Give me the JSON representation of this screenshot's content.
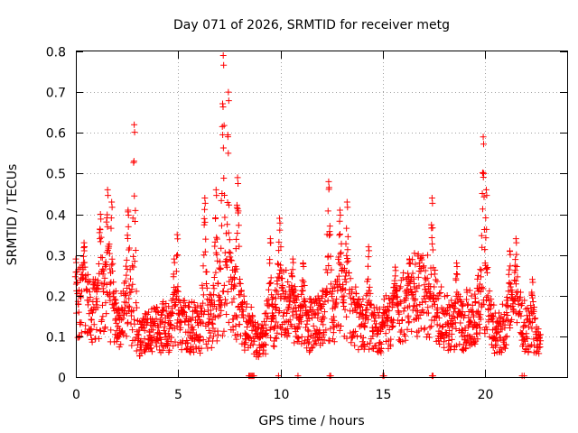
{
  "chart_data": {
    "type": "scatter",
    "title": "Day 071 of 2026, SRMTID for receiver metg",
    "xlabel": "GPS time / hours",
    "ylabel": "SRMTID / TECUs",
    "xlim": [
      0,
      24
    ],
    "ylim": [
      0,
      0.8
    ],
    "x_ticks": [
      0,
      5,
      10,
      15,
      20
    ],
    "y_ticks": [
      0,
      0.1,
      0.2,
      0.3,
      0.4,
      0.5,
      0.6,
      0.7,
      0.8
    ],
    "x_tick_labels": [
      "0",
      "5",
      "10",
      "15",
      "20"
    ],
    "y_tick_labels": [
      "0",
      "0.1",
      "0.2",
      "0.3",
      "0.4",
      "0.5",
      "0.6",
      "0.7",
      "0.8"
    ],
    "grid": true,
    "marker": "+",
    "color": "#ff0000",
    "baseline": [
      [
        0.0,
        0.16
      ],
      [
        0.5,
        0.18
      ],
      [
        1.0,
        0.15
      ],
      [
        1.5,
        0.17
      ],
      [
        2.0,
        0.13
      ],
      [
        2.5,
        0.15
      ],
      [
        3.0,
        0.1
      ],
      [
        3.5,
        0.1
      ],
      [
        4.0,
        0.11
      ],
      [
        4.5,
        0.12
      ],
      [
        5.0,
        0.13
      ],
      [
        5.5,
        0.12
      ],
      [
        6.0,
        0.11
      ],
      [
        6.5,
        0.13
      ],
      [
        7.0,
        0.17
      ],
      [
        7.5,
        0.2
      ],
      [
        8.0,
        0.14
      ],
      [
        8.5,
        0.11
      ],
      [
        9.0,
        0.09
      ],
      [
        9.5,
        0.13
      ],
      [
        10.0,
        0.17
      ],
      [
        10.5,
        0.16
      ],
      [
        11.0,
        0.13
      ],
      [
        11.5,
        0.12
      ],
      [
        12.0,
        0.14
      ],
      [
        12.5,
        0.16
      ],
      [
        13.0,
        0.18
      ],
      [
        13.5,
        0.15
      ],
      [
        14.0,
        0.12
      ],
      [
        14.5,
        0.11
      ],
      [
        15.0,
        0.12
      ],
      [
        15.5,
        0.14
      ],
      [
        16.0,
        0.16
      ],
      [
        16.5,
        0.19
      ],
      [
        17.0,
        0.2
      ],
      [
        17.5,
        0.17
      ],
      [
        18.0,
        0.13
      ],
      [
        18.5,
        0.12
      ],
      [
        19.0,
        0.13
      ],
      [
        19.5,
        0.15
      ],
      [
        20.0,
        0.18
      ],
      [
        20.5,
        0.1
      ],
      [
        21.0,
        0.12
      ],
      [
        21.5,
        0.16
      ],
      [
        22.0,
        0.11
      ],
      [
        22.5,
        0.09
      ],
      [
        22.7,
        0.08
      ]
    ],
    "spikes": [
      {
        "t": 0.0,
        "peak": 0.29,
        "width": 0.15
      },
      {
        "t": 0.4,
        "peak": 0.33,
        "width": 0.2
      },
      {
        "t": 1.2,
        "peak": 0.4,
        "width": 0.25
      },
      {
        "t": 1.55,
        "peak": 0.46,
        "width": 0.2
      },
      {
        "t": 1.75,
        "peak": 0.43,
        "width": 0.15
      },
      {
        "t": 2.55,
        "peak": 0.41,
        "width": 0.2
      },
      {
        "t": 2.85,
        "peak": 0.62,
        "width": 0.15
      },
      {
        "t": 4.8,
        "peak": 0.29,
        "width": 0.15
      },
      {
        "t": 4.95,
        "peak": 0.35,
        "width": 0.12
      },
      {
        "t": 6.3,
        "peak": 0.44,
        "width": 0.2
      },
      {
        "t": 6.85,
        "peak": 0.46,
        "width": 0.15
      },
      {
        "t": 7.2,
        "peak": 0.79,
        "width": 0.2
      },
      {
        "t": 7.45,
        "peak": 0.7,
        "width": 0.1
      },
      {
        "t": 7.9,
        "peak": 0.49,
        "width": 0.2
      },
      {
        "t": 9.5,
        "peak": 0.34,
        "width": 0.15
      },
      {
        "t": 9.95,
        "peak": 0.39,
        "width": 0.2
      },
      {
        "t": 10.6,
        "peak": 0.29,
        "width": 0.2
      },
      {
        "t": 11.1,
        "peak": 0.28,
        "width": 0.2
      },
      {
        "t": 12.35,
        "peak": 0.48,
        "width": 0.2
      },
      {
        "t": 12.9,
        "peak": 0.41,
        "width": 0.2
      },
      {
        "t": 13.25,
        "peak": 0.43,
        "width": 0.15
      },
      {
        "t": 14.3,
        "peak": 0.32,
        "width": 0.2
      },
      {
        "t": 15.6,
        "peak": 0.27,
        "width": 0.2
      },
      {
        "t": 16.3,
        "peak": 0.29,
        "width": 0.2
      },
      {
        "t": 17.4,
        "peak": 0.44,
        "width": 0.1
      },
      {
        "t": 18.6,
        "peak": 0.28,
        "width": 0.2
      },
      {
        "t": 19.9,
        "peak": 0.59,
        "width": 0.15
      },
      {
        "t": 20.05,
        "peak": 0.46,
        "width": 0.1
      },
      {
        "t": 21.2,
        "peak": 0.31,
        "width": 0.2
      },
      {
        "t": 21.5,
        "peak": 0.34,
        "width": 0.15
      },
      {
        "t": 22.3,
        "peak": 0.24,
        "width": 0.2
      }
    ],
    "zero_points": [
      8.45,
      8.5,
      8.55,
      8.6,
      8.65,
      8.7,
      9.9,
      10.85,
      12.4,
      12.45,
      15.0,
      15.05,
      17.4,
      17.45,
      21.8,
      21.9
    ]
  }
}
